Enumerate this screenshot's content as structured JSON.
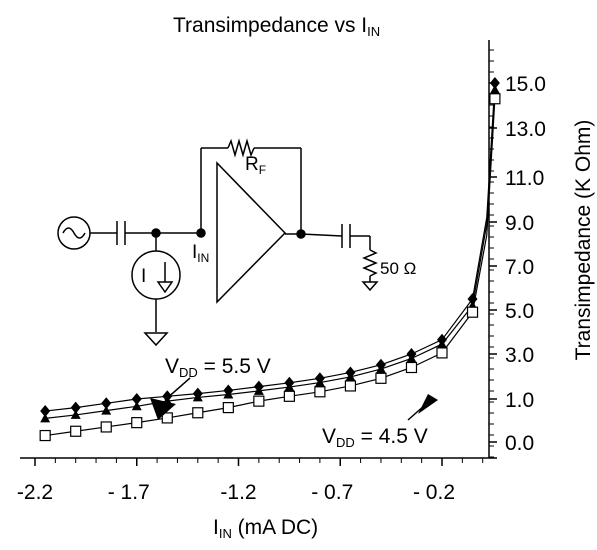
{
  "chart_data": {
    "type": "line",
    "title": {
      "main": "Transimpedance vs I",
      "sub": "IN"
    },
    "xlabel": {
      "main": "I",
      "sub": "IN",
      "rest": " (mA DC)"
    },
    "ylabel": "Transimpedance (K Ohm)",
    "x_ticks": [
      -2.2,
      -1.7,
      -1.2,
      -0.7,
      -0.2
    ],
    "x_tick_labels": [
      "-2.2",
      "- 1.7",
      "-1.2",
      "- 0.7",
      "- 0.2"
    ],
    "y_ticks": [
      0,
      1,
      3,
      5,
      7,
      9,
      11,
      13,
      15
    ],
    "y_tick_labels": [
      "0.0",
      "1.0",
      "3.0",
      "5.0",
      "7.0",
      "9.0",
      "11.0",
      "13.0",
      "15.0"
    ],
    "xlim": [
      -2.2,
      0.12
    ],
    "grid": false,
    "series": [
      {
        "name": "VDD = 5.5 V",
        "marker": "diamond",
        "points": [
          [
            -2.15,
            0.72
          ],
          [
            -2.0,
            0.8
          ],
          [
            -1.85,
            0.9
          ],
          [
            -1.7,
            1.0
          ],
          [
            -1.55,
            1.12
          ],
          [
            -1.4,
            1.24
          ],
          [
            -1.25,
            1.38
          ],
          [
            -1.1,
            1.55
          ],
          [
            -0.95,
            1.72
          ],
          [
            -0.8,
            1.92
          ],
          [
            -0.65,
            2.18
          ],
          [
            -0.5,
            2.52
          ],
          [
            -0.35,
            3.0
          ],
          [
            -0.2,
            3.65
          ],
          [
            -0.05,
            5.5
          ],
          [
            0.02,
            9.2
          ],
          [
            0.06,
            15.0
          ]
        ]
      },
      {
        "name": "",
        "marker": "triangle",
        "points": [
          [
            -2.15,
            0.55
          ],
          [
            -2.0,
            0.63
          ],
          [
            -1.85,
            0.73
          ],
          [
            -1.7,
            0.83
          ],
          [
            -1.55,
            0.95
          ],
          [
            -1.4,
            1.07
          ],
          [
            -1.25,
            1.2
          ],
          [
            -1.1,
            1.36
          ],
          [
            -0.95,
            1.53
          ],
          [
            -0.8,
            1.73
          ],
          [
            -0.65,
            1.98
          ],
          [
            -0.5,
            2.33
          ],
          [
            -0.35,
            2.8
          ],
          [
            -0.2,
            3.45
          ],
          [
            -0.05,
            5.2
          ],
          [
            0.02,
            8.9
          ],
          [
            0.06,
            14.7
          ]
        ]
      },
      {
        "name": "VDD = 4.5 V",
        "marker": "square",
        "points": [
          [
            -2.15,
            0.15
          ],
          [
            -2.0,
            0.25
          ],
          [
            -1.85,
            0.35
          ],
          [
            -1.7,
            0.45
          ],
          [
            -1.55,
            0.56
          ],
          [
            -1.4,
            0.68
          ],
          [
            -1.25,
            0.8
          ],
          [
            -1.1,
            0.95
          ],
          [
            -0.95,
            1.12
          ],
          [
            -0.8,
            1.32
          ],
          [
            -0.65,
            1.58
          ],
          [
            -0.5,
            1.92
          ],
          [
            -0.35,
            2.4
          ],
          [
            -0.2,
            3.05
          ],
          [
            -0.05,
            4.9
          ],
          [
            0.02,
            8.4
          ],
          [
            0.06,
            14.3
          ]
        ]
      }
    ],
    "annotations": {
      "vdd55": {
        "main": "V",
        "sub": "DD",
        "rest": " = 5.5 V"
      },
      "vdd45": {
        "main": "V",
        "sub": "DD",
        "rest": " = 4.5 V"
      }
    }
  },
  "circuit": {
    "rf": {
      "main": "R",
      "sub": "F"
    },
    "iin": {
      "main": "I",
      "sub": "IN"
    },
    "isrc": {
      "main": "I"
    },
    "load": "50 Ω"
  }
}
